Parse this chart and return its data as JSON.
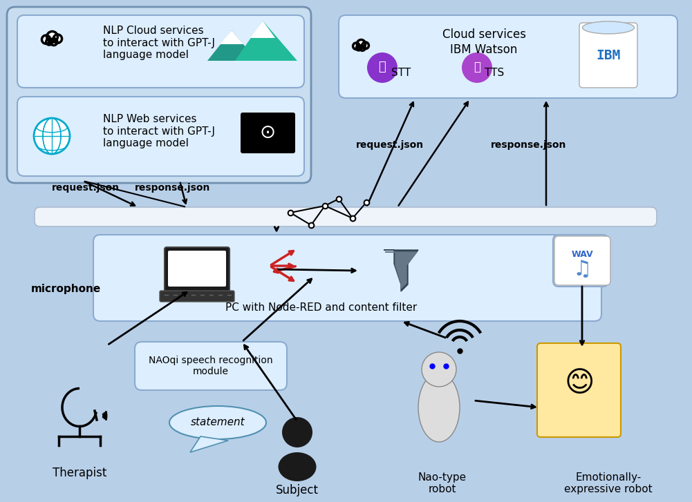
{
  "bg_color": "#b8cfe8",
  "fig_bg": "#b8cfe8",
  "box_color": "#dce8f5",
  "box_edge": "#a0b8d0",
  "title": "",
  "nlp_cloud_text": "NLP Cloud services\nto interact with GPT-J\nlanguage model",
  "nlp_web_text": "NLP Web services\nto interact with GPT-J\nlanguage model",
  "cloud_services_text": "Cloud services\nIBM Watson",
  "stt_label": "STT",
  "tts_label": "TTS",
  "node_red_text": "PC with Node-RED and content filter",
  "naoqi_text": "NAOqi speech recognition\nmodule",
  "microphone_text": "microphone",
  "therapist_text": "Therapist",
  "subject_text": "Subject",
  "nao_text": "Nao-type\nrobot",
  "emotive_text": "Emotionally-\nexpressive robot",
  "statement_text": "statement",
  "request_json_left": "request.json",
  "response_json_left": "response.json",
  "request_json_right": "request.json",
  "response_json_right": "response.json"
}
